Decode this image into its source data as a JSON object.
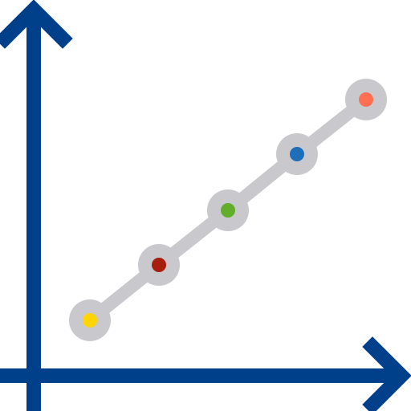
{
  "icon": {
    "name": "line-graph-icon",
    "axis_color": "#003F8A",
    "connector_color": "#C8C8CD",
    "marker_halo_color": "#C8C8CD",
    "points": [
      {
        "name": "data-point-yellow",
        "color": "#FFD400"
      },
      {
        "name": "data-point-red",
        "color": "#A71E0C"
      },
      {
        "name": "data-point-green",
        "color": "#62AE2A"
      },
      {
        "name": "data-point-blue",
        "color": "#1E6FBA"
      },
      {
        "name": "data-point-orange",
        "color": "#FF6F51"
      }
    ]
  }
}
